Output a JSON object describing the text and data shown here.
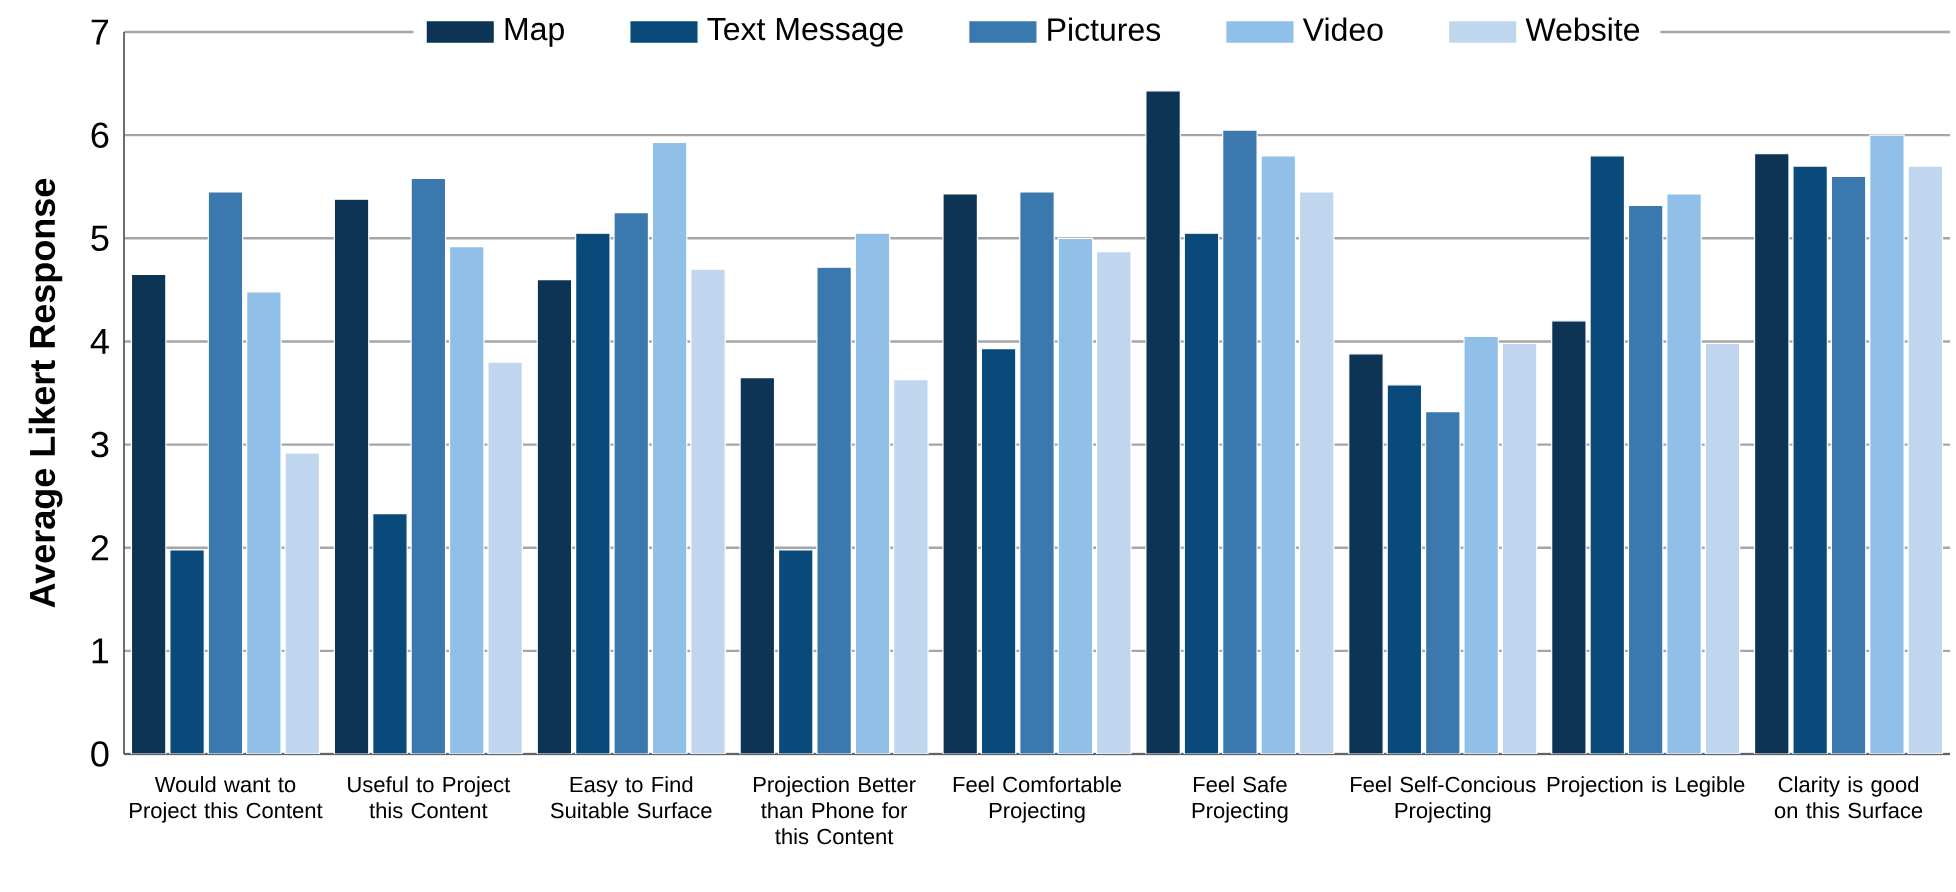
{
  "chart_data": {
    "type": "bar",
    "ylabel": "Average Likert Response",
    "categories": [
      "Would want to Project this Content",
      "Useful to Project this Content",
      "Easy to Find Suitable Surface",
      "Projection Better than Phone for this Content",
      "Feel Comfortable Projecting",
      "Feel Safe Projecting",
      "Feel Self-Concious Projecting",
      "Projection is Legible",
      "Clarity is good on this Surface"
    ],
    "series": [
      {
        "name": "Map",
        "color": "#0d3355",
        "values": [
          4.65,
          5.38,
          4.6,
          3.65,
          5.43,
          6.43,
          3.88,
          4.2,
          5.82
        ]
      },
      {
        "name": "Text Message",
        "color": "#0a4a7a",
        "values": [
          1.98,
          2.33,
          5.05,
          1.98,
          3.93,
          5.05,
          3.58,
          5.8,
          5.7
        ]
      },
      {
        "name": "Pictures",
        "color": "#3a78ad",
        "values": [
          5.45,
          5.58,
          5.25,
          4.72,
          5.45,
          6.05,
          3.32,
          5.32,
          5.6
        ]
      },
      {
        "name": "Video",
        "color": "#90bfe8",
        "values": [
          4.48,
          4.92,
          5.93,
          5.05,
          5.0,
          5.8,
          4.05,
          5.43,
          6.0
        ]
      },
      {
        "name": "Website",
        "color": "#c0d6ee",
        "values": [
          2.92,
          3.8,
          4.7,
          3.63,
          4.87,
          5.45,
          3.98,
          3.98,
          5.7
        ]
      }
    ],
    "ylim": [
      0,
      7
    ],
    "yticks": [
      0,
      1,
      2,
      3,
      4,
      5,
      6,
      7
    ],
    "grid": "y",
    "legend": "top"
  }
}
